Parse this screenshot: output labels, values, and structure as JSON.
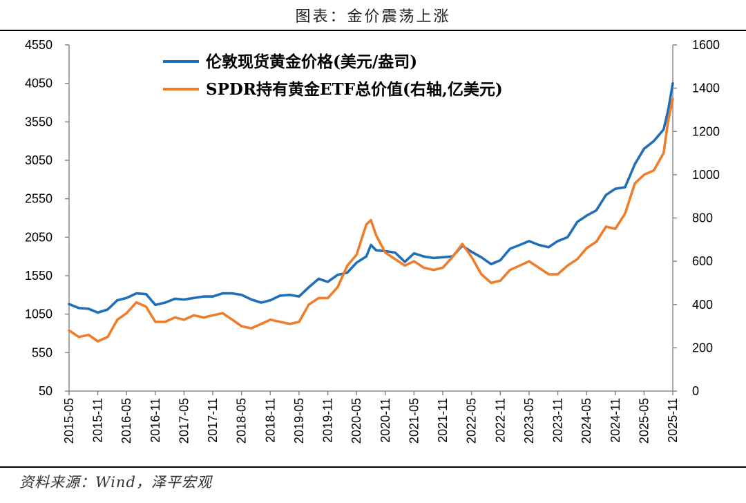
{
  "title": "图表：金价震荡上涨",
  "source": "资料来源：Wind，泽平宏观",
  "colors": {
    "gold": "#1F6FB8",
    "etf": "#EE7D2C",
    "axis": "#888888"
  },
  "chart_data": {
    "type": "line",
    "title": "图表：金价震荡上涨",
    "x_tick_labels": [
      "2015-05",
      "2015-11",
      "2016-05",
      "2016-11",
      "2017-05",
      "2017-11",
      "2018-05",
      "2018-11",
      "2019-05",
      "2019-11",
      "2020-05",
      "2020-11",
      "2021-05",
      "2021-11",
      "2022-05",
      "2022-11",
      "2023-05",
      "2023-11",
      "2024-05",
      "2024-11",
      "2025-05",
      "2025-11"
    ],
    "y_left": {
      "min": 50,
      "max": 4550,
      "ticks": [
        50,
        550,
        1050,
        1550,
        2050,
        2550,
        3050,
        3550,
        4050,
        4550
      ]
    },
    "y_right": {
      "min": 0,
      "max": 1600,
      "ticks": [
        0,
        200,
        400,
        600,
        800,
        1000,
        1200,
        1400,
        1600
      ]
    },
    "legend": [
      "伦敦现货黄金价格(美元/盎司)",
      "SPDR持有黄金ETF总价值(右轴,亿美元)"
    ],
    "legend_position": "top-left",
    "series": [
      {
        "name": "伦敦现货黄金价格(美元/盎司)",
        "axis": "left",
        "color": "#1F6FB8",
        "x": [
          2015.33,
          2015.5,
          2015.67,
          2015.83,
          2016.0,
          2016.17,
          2016.33,
          2016.5,
          2016.67,
          2016.83,
          2017.0,
          2017.17,
          2017.33,
          2017.5,
          2017.67,
          2017.83,
          2018.0,
          2018.17,
          2018.33,
          2018.5,
          2018.67,
          2018.83,
          2019.0,
          2019.17,
          2019.33,
          2019.5,
          2019.67,
          2019.83,
          2020.0,
          2020.17,
          2020.33,
          2020.5,
          2020.58,
          2020.67,
          2020.83,
          2021.0,
          2021.17,
          2021.33,
          2021.5,
          2021.67,
          2021.83,
          2022.0,
          2022.17,
          2022.33,
          2022.5,
          2022.67,
          2022.83,
          2023.0,
          2023.17,
          2023.33,
          2023.5,
          2023.67,
          2023.83,
          2024.0,
          2024.17,
          2024.33,
          2024.5,
          2024.67,
          2024.83,
          2025.0,
          2025.17,
          2025.33,
          2025.5,
          2025.67,
          2025.75,
          2025.83
        ],
        "values": [
          1180,
          1130,
          1120,
          1070,
          1110,
          1230,
          1260,
          1320,
          1310,
          1170,
          1200,
          1250,
          1240,
          1260,
          1280,
          1280,
          1320,
          1320,
          1300,
          1240,
          1200,
          1230,
          1290,
          1300,
          1280,
          1400,
          1510,
          1470,
          1560,
          1590,
          1720,
          1800,
          1950,
          1880,
          1870,
          1850,
          1730,
          1840,
          1800,
          1780,
          1790,
          1800,
          1940,
          1860,
          1790,
          1700,
          1750,
          1900,
          1950,
          2000,
          1950,
          1920,
          2000,
          2050,
          2250,
          2330,
          2400,
          2600,
          2680,
          2700,
          3000,
          3200,
          3300,
          3450,
          3700,
          4050
        ]
      },
      {
        "name": "SPDR持有黄金ETF总价值(右轴,亿美元)",
        "axis": "right",
        "color": "#EE7D2C",
        "x": [
          2015.33,
          2015.5,
          2015.67,
          2015.83,
          2016.0,
          2016.17,
          2016.33,
          2016.5,
          2016.67,
          2016.83,
          2017.0,
          2017.17,
          2017.33,
          2017.5,
          2017.67,
          2017.83,
          2018.0,
          2018.17,
          2018.33,
          2018.5,
          2018.67,
          2018.83,
          2019.0,
          2019.17,
          2019.33,
          2019.5,
          2019.67,
          2019.83,
          2020.0,
          2020.17,
          2020.33,
          2020.5,
          2020.58,
          2020.67,
          2020.83,
          2021.0,
          2021.17,
          2021.33,
          2021.5,
          2021.67,
          2021.83,
          2022.0,
          2022.17,
          2022.33,
          2022.5,
          2022.67,
          2022.83,
          2023.0,
          2023.17,
          2023.33,
          2023.5,
          2023.67,
          2023.83,
          2024.0,
          2024.17,
          2024.33,
          2024.5,
          2024.67,
          2024.83,
          2025.0,
          2025.17,
          2025.33,
          2025.5,
          2025.67,
          2025.75,
          2025.83
        ],
        "values": [
          280,
          250,
          260,
          230,
          250,
          330,
          360,
          410,
          390,
          320,
          320,
          340,
          330,
          350,
          340,
          350,
          360,
          330,
          300,
          290,
          310,
          330,
          320,
          310,
          320,
          400,
          430,
          430,
          480,
          580,
          630,
          770,
          790,
          720,
          640,
          610,
          580,
          600,
          570,
          560,
          570,
          620,
          680,
          620,
          540,
          500,
          510,
          560,
          580,
          600,
          570,
          540,
          540,
          580,
          610,
          660,
          690,
          760,
          750,
          820,
          960,
          1000,
          1020,
          1100,
          1250,
          1350
        ]
      }
    ]
  }
}
